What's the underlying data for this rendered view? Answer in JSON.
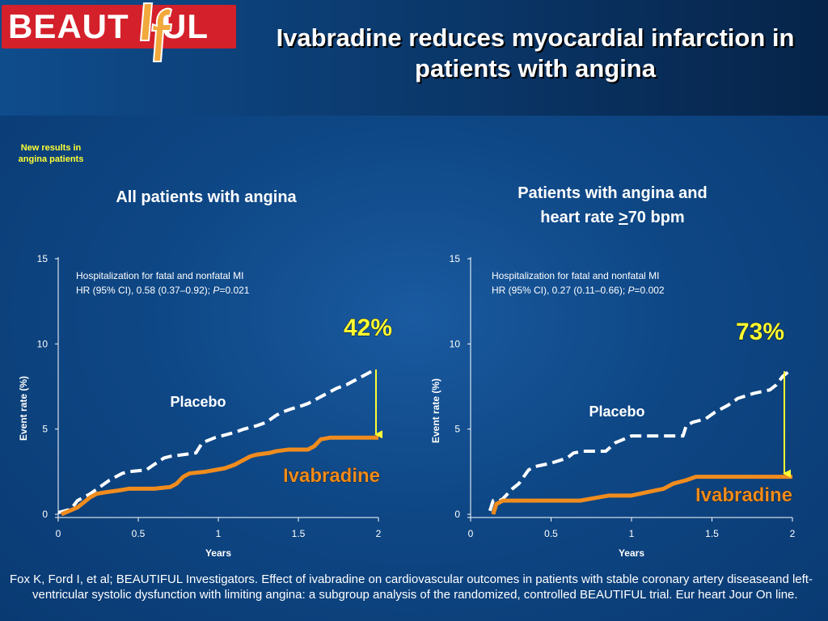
{
  "logo": {
    "left_text": "BEAUT",
    "middle_text": "If",
    "right_text": "UL"
  },
  "title": "Ivabradine reduces myocardial infarction in patients with angina",
  "badge": {
    "line1": "New results in",
    "line2": "angina patients"
  },
  "panels": {
    "left": {
      "title_line1": "All patients with angina",
      "title_line2": ""
    },
    "right": {
      "title_line1": "Patients with angina and",
      "title_line2_pre": "heart rate ",
      "title_line2_ge": ">",
      "title_line2_post": "70 bpm"
    }
  },
  "colors": {
    "placebo": "#ffffff",
    "ivabradine": "#f08c1e",
    "arrow": "#ffff33",
    "percent": "#ffff33"
  },
  "chart_data": [
    {
      "type": "line",
      "xlabel": "Years",
      "ylabel": "Event rate (%)",
      "xlim": [
        0,
        2
      ],
      "ylim": [
        0,
        15
      ],
      "xticks": [
        "0",
        "0.5",
        "1",
        "1.5",
        "2"
      ],
      "yticks": [
        "0",
        "5",
        "10",
        "15"
      ],
      "annotation_line1": "Hospitalization for fatal and nonfatal MI",
      "annotation_line2_pre": "HR (95% CI), 0.58 (0.37–0.92); ",
      "annotation_line2_p": "P",
      "annotation_line2_post": "=0.021",
      "reduction_label": "42%",
      "series": [
        {
          "name": "Placebo",
          "style": "dashed",
          "x": [
            0,
            0.08,
            0.12,
            0.16,
            0.2,
            0.26,
            0.32,
            0.4,
            0.44,
            0.55,
            0.58,
            0.66,
            0.7,
            0.86,
            0.9,
            0.98,
            1.1,
            1.16,
            1.24,
            1.3,
            1.36,
            1.4,
            1.46,
            1.5,
            1.56,
            1.62,
            1.68,
            1.74,
            1.8,
            1.86,
            1.9,
            1.94,
            1.98
          ],
          "y": [
            0.1,
            0.3,
            0.8,
            1.0,
            1.2,
            1.6,
            2.0,
            2.4,
            2.5,
            2.6,
            2.8,
            3.3,
            3.4,
            3.6,
            4.2,
            4.5,
            4.8,
            5.0,
            5.2,
            5.4,
            5.8,
            6.0,
            6.2,
            6.3,
            6.5,
            6.8,
            7.1,
            7.4,
            7.6,
            7.9,
            8.1,
            8.3,
            8.5
          ]
        },
        {
          "name": "Ivabradine",
          "style": "solid",
          "x": [
            0.02,
            0.12,
            0.2,
            0.24,
            0.3,
            0.38,
            0.44,
            0.5,
            0.6,
            0.7,
            0.74,
            0.78,
            0.82,
            0.92,
            0.98,
            1.04,
            1.1,
            1.14,
            1.2,
            1.24,
            1.32,
            1.36,
            1.44,
            1.5,
            1.56,
            1.6,
            1.64,
            1.7,
            1.8,
            1.9,
            2.0
          ],
          "y": [
            0.0,
            0.4,
            1.0,
            1.2,
            1.3,
            1.4,
            1.5,
            1.5,
            1.5,
            1.6,
            1.8,
            2.2,
            2.4,
            2.5,
            2.6,
            2.7,
            2.9,
            3.1,
            3.4,
            3.5,
            3.6,
            3.7,
            3.8,
            3.8,
            3.8,
            4.0,
            4.4,
            4.5,
            4.5,
            4.5,
            4.5
          ]
        }
      ]
    },
    {
      "type": "line",
      "xlabel": "Years",
      "ylabel": "Event rate (%)",
      "xlim": [
        0,
        2
      ],
      "ylim": [
        0,
        15
      ],
      "xticks": [
        "0",
        "0.5",
        "1",
        "1.5",
        "2"
      ],
      "yticks": [
        "0",
        "5",
        "10",
        "15"
      ],
      "annotation_line1": "Hospitalization for fatal and nonfatal MI",
      "annotation_line2_pre": "HR (95% CI), 0.27 (0.11–0.66); ",
      "annotation_line2_p": "P",
      "annotation_line2_post": "=0.002",
      "reduction_label": "73%",
      "series": [
        {
          "name": "Placebo",
          "style": "dashed",
          "x": [
            0.12,
            0.14,
            0.18,
            0.2,
            0.26,
            0.3,
            0.36,
            0.4,
            0.5,
            0.6,
            0.64,
            0.7,
            0.84,
            0.9,
            1.0,
            1.1,
            1.2,
            1.26,
            1.32,
            1.34,
            1.38,
            1.46,
            1.52,
            1.6,
            1.66,
            1.76,
            1.86,
            1.9,
            1.94,
            1.98
          ],
          "y": [
            0.2,
            0.8,
            0.8,
            0.9,
            1.5,
            1.8,
            2.6,
            2.8,
            3.0,
            3.3,
            3.6,
            3.7,
            3.7,
            4.2,
            4.6,
            4.6,
            4.6,
            4.6,
            4.6,
            5.2,
            5.4,
            5.6,
            6.0,
            6.4,
            6.8,
            7.1,
            7.3,
            7.6,
            8.1,
            8.4
          ]
        },
        {
          "name": "Ivabradine",
          "style": "solid",
          "x": [
            0.14,
            0.16,
            0.2,
            0.3,
            0.5,
            0.68,
            0.8,
            0.86,
            1.0,
            1.1,
            1.2,
            1.26,
            1.34,
            1.4,
            1.5,
            1.7,
            2.0
          ],
          "y": [
            0.0,
            0.6,
            0.8,
            0.8,
            0.8,
            0.8,
            1.0,
            1.1,
            1.1,
            1.3,
            1.5,
            1.8,
            2.0,
            2.2,
            2.2,
            2.2,
            2.2
          ]
        }
      ]
    }
  ],
  "footer": "Fox K, Ford I, et al; BEAUTIFUL Investigators. Effect of ivabradine on cardiovascular outcomes in patients with stable coronary artery diseaseand left-ventricular systolic dysfunction with limiting angina: a subgroup analysis of the randomized, controlled BEAUTIFUL trial. Eur heart Jour On line."
}
